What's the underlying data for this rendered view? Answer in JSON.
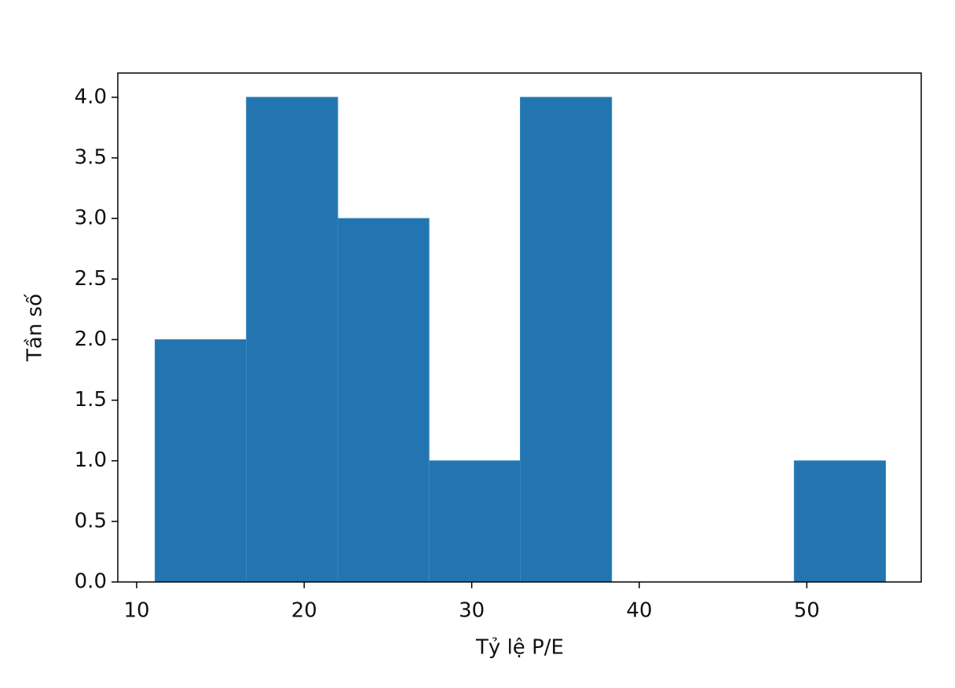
{
  "chart_data": {
    "type": "histogram",
    "xlabel": "Tỷ lệ P/E",
    "ylabel": "Tần số",
    "bins": [
      11.1,
      16.55,
      22.0,
      27.45,
      32.9,
      38.35,
      43.8,
      49.25,
      54.7
    ],
    "values": [
      2,
      4,
      3,
      1,
      4,
      0,
      0,
      1
    ],
    "color": "#2275b0",
    "xlim": [
      8.875,
      56.83
    ],
    "xticks": [
      10,
      20,
      30,
      40,
      50
    ],
    "ylim": [
      0,
      4.2
    ],
    "yticks": [
      {
        "value": 0,
        "label": "0.0"
      },
      0.5,
      {
        "value": 1,
        "label": "1.0"
      },
      1.5,
      {
        "value": 2,
        "label": "2.0"
      },
      2.5,
      {
        "value": 3,
        "label": "3.0"
      },
      3.5,
      {
        "value": 4,
        "label": "4.0"
      }
    ],
    "grid": false
  }
}
